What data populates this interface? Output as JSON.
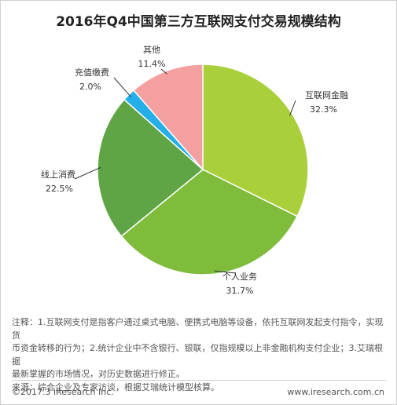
{
  "title": "2016年Q4中国第三方互联网支付交易规模结构",
  "chart_data": {
    "type": "pie",
    "title": "2016年Q4中国第三方互联网支付交易规模结构",
    "slices": [
      {
        "label": "互联网金融",
        "value": 32.3,
        "display": "32.3%",
        "color": "#a9cf3a"
      },
      {
        "label": "个人业务",
        "value": 31.7,
        "display": "31.7%",
        "color": "#7fbc3b"
      },
      {
        "label": "线上消费",
        "value": 22.5,
        "display": "22.5%",
        "color": "#5fa445"
      },
      {
        "label": "充值缴费",
        "value": 2.0,
        "display": "2.0%",
        "color": "#25aee8"
      },
      {
        "label": "其他",
        "value": 11.4,
        "display": "11.4%",
        "color": "#f4a0a0"
      }
    ],
    "start_angle_deg": 0,
    "direction": "clockwise",
    "legend": "none"
  },
  "notes": {
    "line1": "注释：1.互联网支付是指客户通过桌式电脑、便携式电脑等设备，依托互联网发起支付指令，实现货",
    "line2": "币资金转移的行为；2.统计企业中不含银行、银联，仅指规模以上非金融机构支付企业；3.艾瑞根据",
    "line3": "最新掌握的市场情况，对历史数据进行修正。",
    "source": "来源：综合企业及专家访谈，根据艾瑞统计模型核算。"
  },
  "footer": {
    "copyright": "©2017.3 iResearch Inc.",
    "website": "www.iresearch.com.cn"
  }
}
